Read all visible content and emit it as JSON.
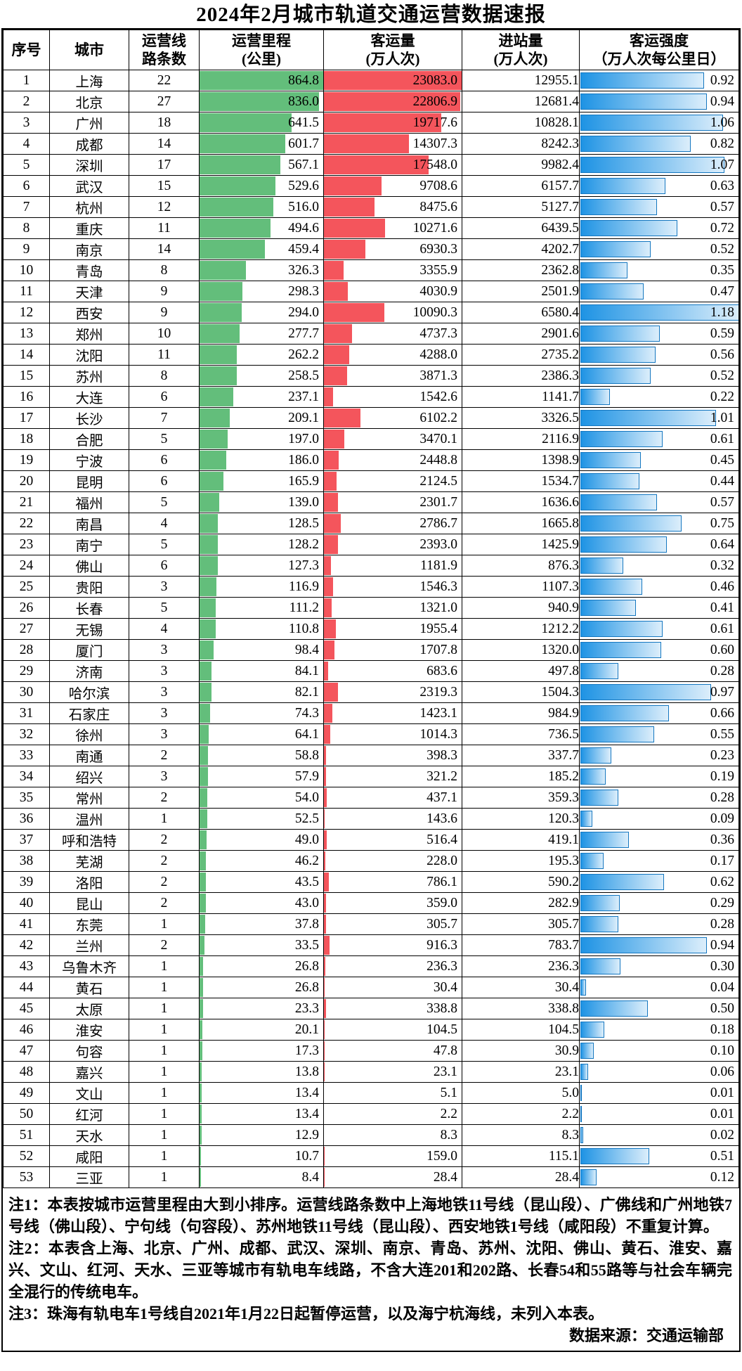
{
  "title": "2024年2月城市轨道交通运营数据速报",
  "chart_data": {
    "type": "table",
    "title": "2024年2月城市轨道交通运营数据速报",
    "columns": [
      "序号",
      "城市",
      "运营线路条数",
      "运营里程(公里)",
      "客运量(万人次)",
      "进站量(万人次)",
      "客运强度（万人次每公里日）"
    ],
    "header_lines": {
      "seq": "序号",
      "city": "城市",
      "lines": [
        "运营线",
        "路条数"
      ],
      "mileage": [
        "运营里程",
        "(公里)"
      ],
      "passengers": [
        "客运量",
        "(万人次)"
      ],
      "entries": [
        "进站量",
        "(万人次)"
      ],
      "intensity": [
        "客运强度",
        "（万人次每公里日）"
      ]
    },
    "bar_scales": {
      "mileage_max": 864.8,
      "passengers_max": 23083.0,
      "intensity_max": 1.18
    },
    "bar_colors": {
      "mileage_fill": "#63BE7B",
      "passengers_fill": "#F4555C",
      "intensity_start": "#1E93E4",
      "intensity_end": "#DCEEFB",
      "intensity_border": "#1577C0"
    },
    "rows": [
      [
        "1",
        "上海",
        "22",
        "864.8",
        "23083.0",
        "12955.1",
        "0.92"
      ],
      [
        "2",
        "北京",
        "27",
        "836.0",
        "22806.9",
        "12681.4",
        "0.94"
      ],
      [
        "3",
        "广州",
        "18",
        "641.5",
        "19717.6",
        "10828.1",
        "1.06"
      ],
      [
        "4",
        "成都",
        "14",
        "601.7",
        "14307.3",
        "8242.3",
        "0.82"
      ],
      [
        "5",
        "深圳",
        "17",
        "567.1",
        "17548.0",
        "9982.4",
        "1.07"
      ],
      [
        "6",
        "武汉",
        "15",
        "529.6",
        "9708.6",
        "6157.7",
        "0.63"
      ],
      [
        "7",
        "杭州",
        "12",
        "516.0",
        "8475.6",
        "5127.7",
        "0.57"
      ],
      [
        "8",
        "重庆",
        "11",
        "494.6",
        "10271.6",
        "6439.5",
        "0.72"
      ],
      [
        "9",
        "南京",
        "14",
        "459.4",
        "6930.3",
        "4202.7",
        "0.52"
      ],
      [
        "10",
        "青岛",
        "8",
        "326.3",
        "3355.9",
        "2362.8",
        "0.35"
      ],
      [
        "11",
        "天津",
        "9",
        "298.3",
        "4030.9",
        "2501.9",
        "0.47"
      ],
      [
        "12",
        "西安",
        "9",
        "294.0",
        "10090.3",
        "6580.4",
        "1.18"
      ],
      [
        "13",
        "郑州",
        "10",
        "277.7",
        "4737.3",
        "2901.6",
        "0.59"
      ],
      [
        "14",
        "沈阳",
        "11",
        "262.2",
        "4288.0",
        "2735.2",
        "0.56"
      ],
      [
        "15",
        "苏州",
        "8",
        "258.5",
        "3871.3",
        "2386.3",
        "0.52"
      ],
      [
        "16",
        "大连",
        "6",
        "237.1",
        "1542.6",
        "1141.7",
        "0.22"
      ],
      [
        "17",
        "长沙",
        "7",
        "209.1",
        "6102.2",
        "3326.5",
        "1.01"
      ],
      [
        "18",
        "合肥",
        "5",
        "197.0",
        "3470.1",
        "2116.9",
        "0.61"
      ],
      [
        "19",
        "宁波",
        "6",
        "186.0",
        "2448.8",
        "1398.9",
        "0.45"
      ],
      [
        "20",
        "昆明",
        "6",
        "165.9",
        "2124.5",
        "1534.7",
        "0.44"
      ],
      [
        "21",
        "福州",
        "5",
        "139.0",
        "2301.7",
        "1636.6",
        "0.57"
      ],
      [
        "22",
        "南昌",
        "4",
        "128.5",
        "2786.7",
        "1665.8",
        "0.75"
      ],
      [
        "23",
        "南宁",
        "5",
        "128.2",
        "2393.0",
        "1425.9",
        "0.64"
      ],
      [
        "24",
        "佛山",
        "6",
        "127.3",
        "1181.9",
        "876.3",
        "0.32"
      ],
      [
        "25",
        "贵阳",
        "3",
        "116.9",
        "1546.3",
        "1107.3",
        "0.46"
      ],
      [
        "26",
        "长春",
        "5",
        "111.2",
        "1321.0",
        "940.9",
        "0.41"
      ],
      [
        "27",
        "无锡",
        "4",
        "110.8",
        "1955.4",
        "1212.2",
        "0.61"
      ],
      [
        "28",
        "厦门",
        "3",
        "98.4",
        "1707.8",
        "1320.0",
        "0.60"
      ],
      [
        "29",
        "济南",
        "3",
        "84.1",
        "683.6",
        "497.8",
        "0.28"
      ],
      [
        "30",
        "哈尔滨",
        "3",
        "82.1",
        "2319.3",
        "1504.3",
        "0.97"
      ],
      [
        "31",
        "石家庄",
        "3",
        "74.3",
        "1423.1",
        "984.9",
        "0.66"
      ],
      [
        "32",
        "徐州",
        "3",
        "64.1",
        "1014.3",
        "736.5",
        "0.55"
      ],
      [
        "33",
        "南通",
        "2",
        "58.8",
        "398.3",
        "337.7",
        "0.23"
      ],
      [
        "34",
        "绍兴",
        "3",
        "57.9",
        "321.2",
        "185.2",
        "0.19"
      ],
      [
        "35",
        "常州",
        "2",
        "54.0",
        "437.1",
        "359.3",
        "0.28"
      ],
      [
        "36",
        "温州",
        "1",
        "52.5",
        "143.6",
        "120.3",
        "0.09"
      ],
      [
        "37",
        "呼和浩特",
        "2",
        "49.0",
        "516.4",
        "419.1",
        "0.36"
      ],
      [
        "38",
        "芜湖",
        "2",
        "46.2",
        "228.0",
        "195.3",
        "0.17"
      ],
      [
        "39",
        "洛阳",
        "2",
        "43.5",
        "786.1",
        "590.2",
        "0.62"
      ],
      [
        "40",
        "昆山",
        "2",
        "43.0",
        "359.0",
        "282.9",
        "0.29"
      ],
      [
        "41",
        "东莞",
        "1",
        "37.8",
        "305.7",
        "305.7",
        "0.28"
      ],
      [
        "42",
        "兰州",
        "2",
        "33.5",
        "916.3",
        "783.7",
        "0.94"
      ],
      [
        "43",
        "乌鲁木齐",
        "1",
        "26.8",
        "236.3",
        "236.3",
        "0.30"
      ],
      [
        "44",
        "黄石",
        "1",
        "26.8",
        "30.4",
        "30.4",
        "0.04"
      ],
      [
        "45",
        "太原",
        "1",
        "23.3",
        "338.8",
        "338.8",
        "0.50"
      ],
      [
        "46",
        "淮安",
        "1",
        "20.1",
        "104.5",
        "104.5",
        "0.18"
      ],
      [
        "47",
        "句容",
        "1",
        "17.3",
        "47.8",
        "30.9",
        "0.10"
      ],
      [
        "48",
        "嘉兴",
        "1",
        "13.8",
        "23.1",
        "23.1",
        "0.06"
      ],
      [
        "49",
        "文山",
        "1",
        "13.4",
        "5.1",
        "5.0",
        "0.01"
      ],
      [
        "50",
        "红河",
        "1",
        "13.4",
        "2.2",
        "2.2",
        "0.01"
      ],
      [
        "51",
        "天水",
        "1",
        "12.9",
        "8.3",
        "8.3",
        "0.02"
      ],
      [
        "52",
        "咸阳",
        "1",
        "10.7",
        "159.0",
        "115.1",
        "0.51"
      ],
      [
        "53",
        "三亚",
        "1",
        "8.4",
        "28.4",
        "28.4",
        "0.12"
      ]
    ]
  },
  "notes": [
    "注1：本表按城市运营里程由大到小排序。运营线路条数中上海地铁11号线（昆山段）、广佛线和广州地铁7号线（佛山段）、宁句线（句容段）、苏州地铁11号线（昆山段）、西安地铁1号线（咸阳段）不重复计算。",
    "注2：本表含上海、北京、广州、成都、武汉、深圳、南京、青岛、苏州、沈阳、佛山、黄石、淮安、嘉兴、文山、红河、天水、三亚等城市有轨电车线路，不含大连201和202路、长春54和55路等与社会车辆完全混行的传统电车。",
    "注3：珠海有轨电车1号线自2021年1月22日起暂停运营，以及海宁杭海线，未列入本表。"
  ],
  "source": "数据来源：交通运输部"
}
